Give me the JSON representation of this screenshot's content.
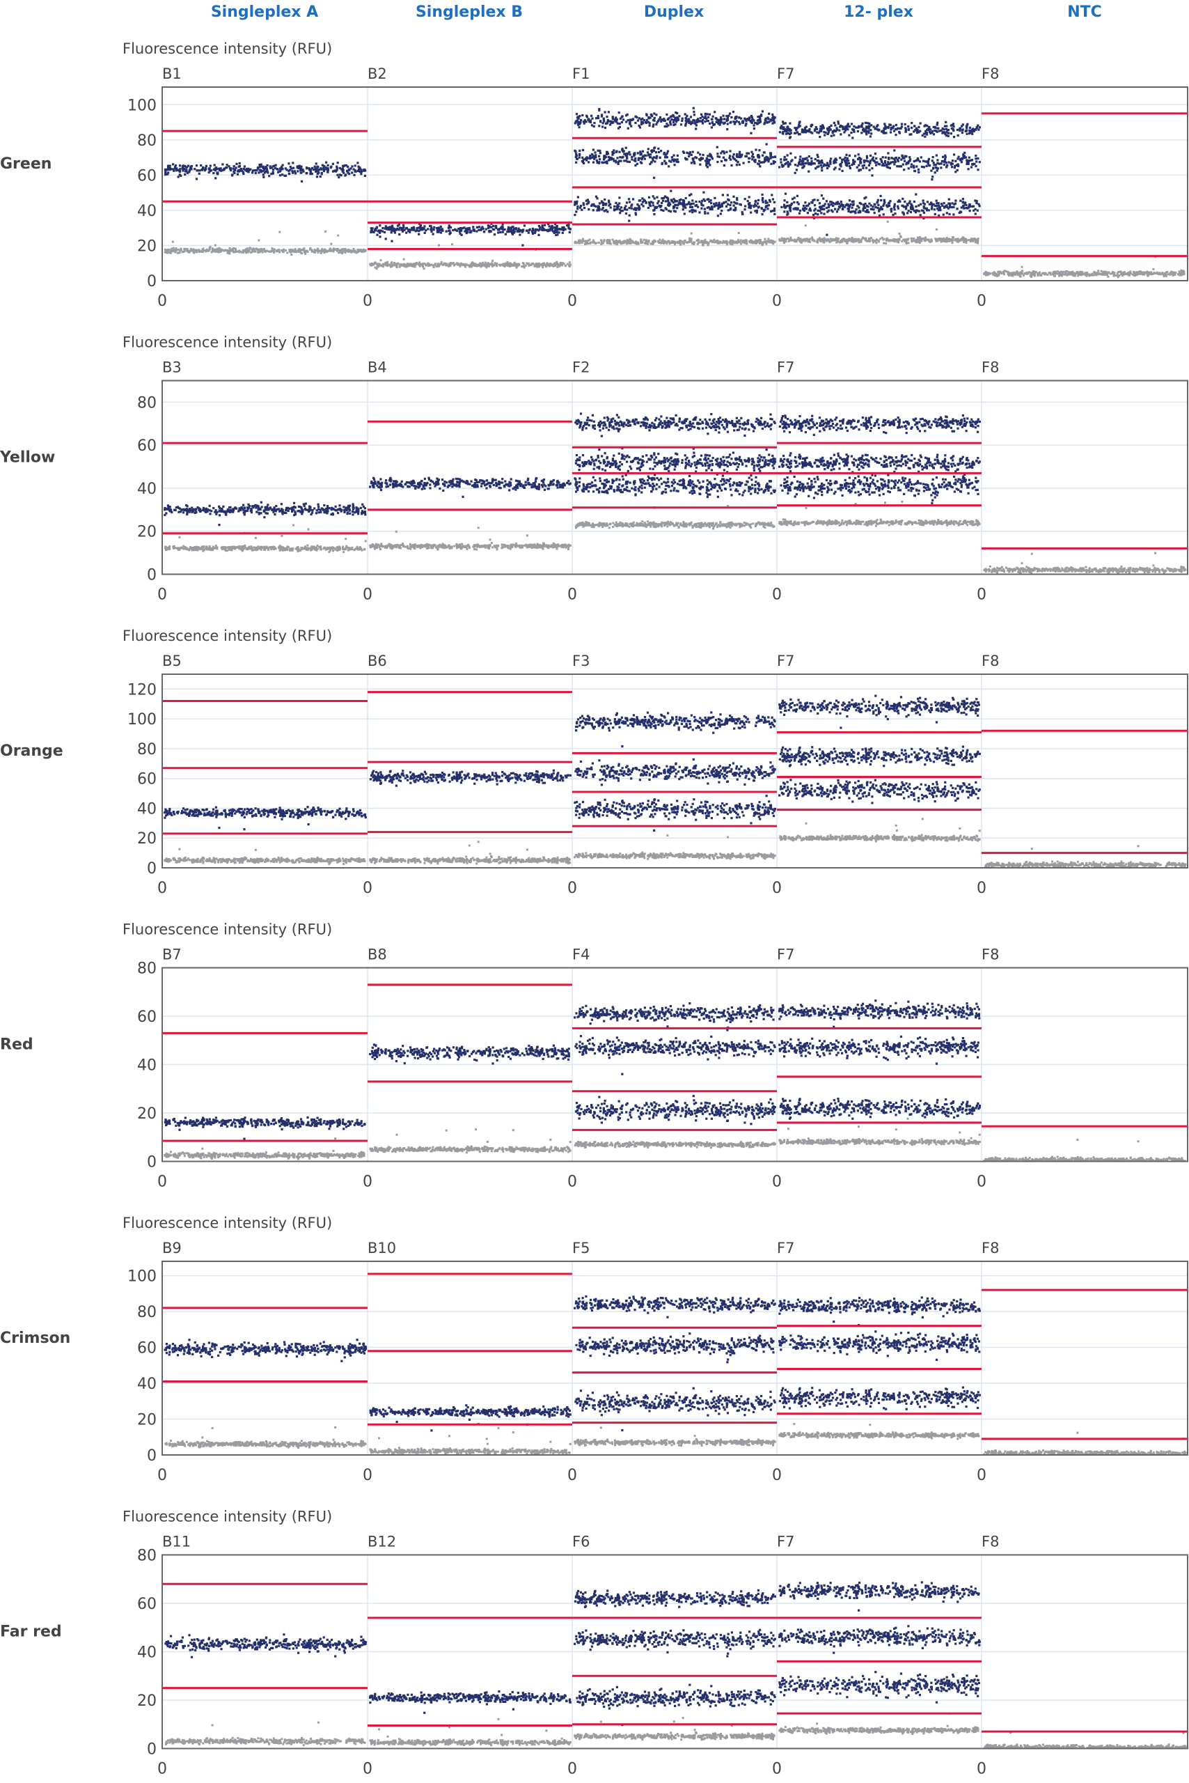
{
  "chart_data": {
    "type": "scatter",
    "title": "",
    "columns": [
      "Singleplex A",
      "Singleplex B",
      "Duplex",
      "12- plex",
      "NTC"
    ],
    "ylabel": "Fluorescence intensity (RFU)",
    "x_tick_label": "0",
    "colors": {
      "positive": "#24306b",
      "negative": "#9a9ca0",
      "threshold": "#e0163f",
      "grid": "#dde6ef",
      "axis": "#666666",
      "column_title": "#1f6fc1",
      "row_label": "#444444"
    },
    "panels": [
      {
        "channel": "Green",
        "ylim": [
          0,
          110
        ],
        "yticks": [
          0,
          20,
          40,
          60,
          80,
          100
        ],
        "wells": [
          {
            "well": "B1",
            "thresholds": [
              85,
              45
            ],
            "positive_clusters": [
              63
            ],
            "negative_cluster": 17
          },
          {
            "well": "B2",
            "thresholds": [
              45,
              33,
              18
            ],
            "positive_clusters": [
              29
            ],
            "negative_cluster": 9
          },
          {
            "well": "F1",
            "thresholds": [
              81,
              53,
              32
            ],
            "positive_clusters": [
              91,
              70,
              43
            ],
            "negative_cluster": 22
          },
          {
            "well": "F7",
            "thresholds": [
              76,
              53,
              36
            ],
            "positive_clusters": [
              86,
              67,
              42
            ],
            "negative_cluster": 23
          },
          {
            "well": "F8",
            "thresholds": [
              95,
              14
            ],
            "positive_clusters": [],
            "negative_cluster": 4
          }
        ]
      },
      {
        "channel": "Yellow",
        "ylim": [
          0,
          90
        ],
        "yticks": [
          0,
          20,
          40,
          60,
          80
        ],
        "wells": [
          {
            "well": "B3",
            "thresholds": [
              61,
              19
            ],
            "positive_clusters": [
              30
            ],
            "negative_cluster": 12
          },
          {
            "well": "B4",
            "thresholds": [
              71,
              30
            ],
            "positive_clusters": [
              42
            ],
            "negative_cluster": 13
          },
          {
            "well": "F2",
            "thresholds": [
              59,
              47,
              31
            ],
            "positive_clusters": [
              70,
              52,
              41
            ],
            "negative_cluster": 23
          },
          {
            "well": "F7",
            "thresholds": [
              61,
              47,
              32
            ],
            "positive_clusters": [
              70,
              52,
              41
            ],
            "negative_cluster": 24
          },
          {
            "well": "F8",
            "thresholds": [
              12
            ],
            "positive_clusters": [],
            "negative_cluster": 2
          }
        ]
      },
      {
        "channel": "Orange",
        "ylim": [
          0,
          130
        ],
        "yticks": [
          0,
          20,
          40,
          60,
          80,
          100,
          120
        ],
        "wells": [
          {
            "well": "B5",
            "thresholds": [
              112,
              67,
              23
            ],
            "positive_clusters": [
              37
            ],
            "negative_cluster": 5
          },
          {
            "well": "B6",
            "thresholds": [
              118,
              71,
              24
            ],
            "positive_clusters": [
              61
            ],
            "negative_cluster": 5
          },
          {
            "well": "F3",
            "thresholds": [
              77,
              51,
              28
            ],
            "positive_clusters": [
              98,
              64,
              39
            ],
            "negative_cluster": 8
          },
          {
            "well": "F7",
            "thresholds": [
              91,
              61,
              39
            ],
            "positive_clusters": [
              108,
              75,
              52
            ],
            "negative_cluster": 20
          },
          {
            "well": "F8",
            "thresholds": [
              92,
              10
            ],
            "positive_clusters": [],
            "negative_cluster": 2
          }
        ]
      },
      {
        "channel": "Red",
        "ylim": [
          0,
          80
        ],
        "yticks": [
          0,
          20,
          40,
          60,
          80
        ],
        "wells": [
          {
            "well": "B7",
            "thresholds": [
              53,
              8.5
            ],
            "positive_clusters": [
              16
            ],
            "negative_cluster": 2.5
          },
          {
            "well": "B8",
            "thresholds": [
              73,
              33
            ],
            "positive_clusters": [
              45
            ],
            "negative_cluster": 5
          },
          {
            "well": "F4",
            "thresholds": [
              55,
              29,
              13
            ],
            "positive_clusters": [
              61,
              47,
              21
            ],
            "negative_cluster": 7
          },
          {
            "well": "F7",
            "thresholds": [
              55,
              35,
              16
            ],
            "positive_clusters": [
              62,
              47,
              22
            ],
            "negative_cluster": 8
          },
          {
            "well": "F8",
            "thresholds": [
              14.5
            ],
            "positive_clusters": [],
            "negative_cluster": 0.5
          }
        ]
      },
      {
        "channel": "Crimson",
        "ylim": [
          0,
          108
        ],
        "yticks": [
          0,
          20,
          40,
          60,
          80,
          100
        ],
        "wells": [
          {
            "well": "B9",
            "thresholds": [
              82,
              41
            ],
            "positive_clusters": [
              59
            ],
            "negative_cluster": 6
          },
          {
            "well": "B10",
            "thresholds": [
              101,
              58,
              17
            ],
            "positive_clusters": [
              24
            ],
            "negative_cluster": 2
          },
          {
            "well": "F5",
            "thresholds": [
              71,
              46,
              18
            ],
            "positive_clusters": [
              84,
              61,
              29
            ],
            "negative_cluster": 7
          },
          {
            "well": "F7",
            "thresholds": [
              72,
              48,
              23
            ],
            "positive_clusters": [
              83,
              62,
              32
            ],
            "negative_cluster": 11
          },
          {
            "well": "F8",
            "thresholds": [
              92,
              9
            ],
            "positive_clusters": [],
            "negative_cluster": 1
          }
        ]
      },
      {
        "channel": "Far red",
        "ylim": [
          0,
          80
        ],
        "yticks": [
          0,
          20,
          40,
          60,
          80
        ],
        "wells": [
          {
            "well": "B11",
            "thresholds": [
              68,
              25
            ],
            "positive_clusters": [
              43
            ],
            "negative_cluster": 3
          },
          {
            "well": "B12",
            "thresholds": [
              54,
              9.5
            ],
            "positive_clusters": [
              21
            ],
            "negative_cluster": 2.5
          },
          {
            "well": "F6",
            "thresholds": [
              54,
              30,
              10
            ],
            "positive_clusters": [
              62,
              45,
              21
            ],
            "negative_cluster": 5
          },
          {
            "well": "F7",
            "thresholds": [
              54,
              36,
              14.5
            ],
            "positive_clusters": [
              65,
              46,
              26
            ],
            "negative_cluster": 7.5
          },
          {
            "well": "F8",
            "thresholds": [
              7
            ],
            "positive_clusters": [],
            "negative_cluster": 0.5
          }
        ]
      }
    ]
  }
}
